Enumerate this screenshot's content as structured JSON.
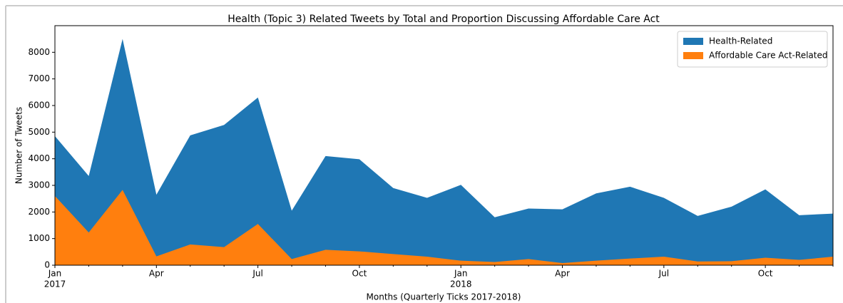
{
  "chart_data": {
    "type": "area",
    "title": "Health (Topic 3) Related Tweets by Total and Proportion Discussing Affordable Care Act",
    "x_label": "Months (Quarterly Ticks 2017-2018)",
    "y_label": "Number of Tweets",
    "categories": [
      "Jan",
      null,
      null,
      "Apr",
      null,
      null,
      "Jul",
      null,
      null,
      "Oct",
      null,
      null,
      "Jan",
      null,
      null,
      "Apr",
      null,
      null,
      "Jul",
      null,
      null,
      "Oct",
      null,
      null
    ],
    "category_years": [
      "2017",
      null,
      null,
      null,
      null,
      null,
      null,
      null,
      null,
      null,
      null,
      null,
      "2018",
      null,
      null,
      null,
      null,
      null,
      null,
      null,
      null,
      null,
      null,
      null
    ],
    "series": [
      {
        "name": "Health-Related",
        "color": "#1f77b4",
        "values": [
          4850,
          3350,
          8500,
          2650,
          4880,
          5270,
          6300,
          2050,
          4100,
          3980,
          2900,
          2530,
          3020,
          1800,
          2130,
          2100,
          2700,
          2950,
          2530,
          1850,
          2200,
          2850,
          1880,
          1940
        ]
      },
      {
        "name": "Affordable Care Act-Related",
        "color": "#ff7f0e",
        "values": [
          2600,
          1230,
          2830,
          330,
          780,
          680,
          1550,
          230,
          580,
          520,
          420,
          320,
          170,
          120,
          230,
          80,
          170,
          250,
          320,
          140,
          150,
          280,
          200,
          320
        ]
      }
    ],
    "ylim": [
      0,
      9000
    ],
    "yticks": [
      0,
      1000,
      2000,
      3000,
      4000,
      5000,
      6000,
      7000,
      8000
    ],
    "legend": "upper right"
  }
}
